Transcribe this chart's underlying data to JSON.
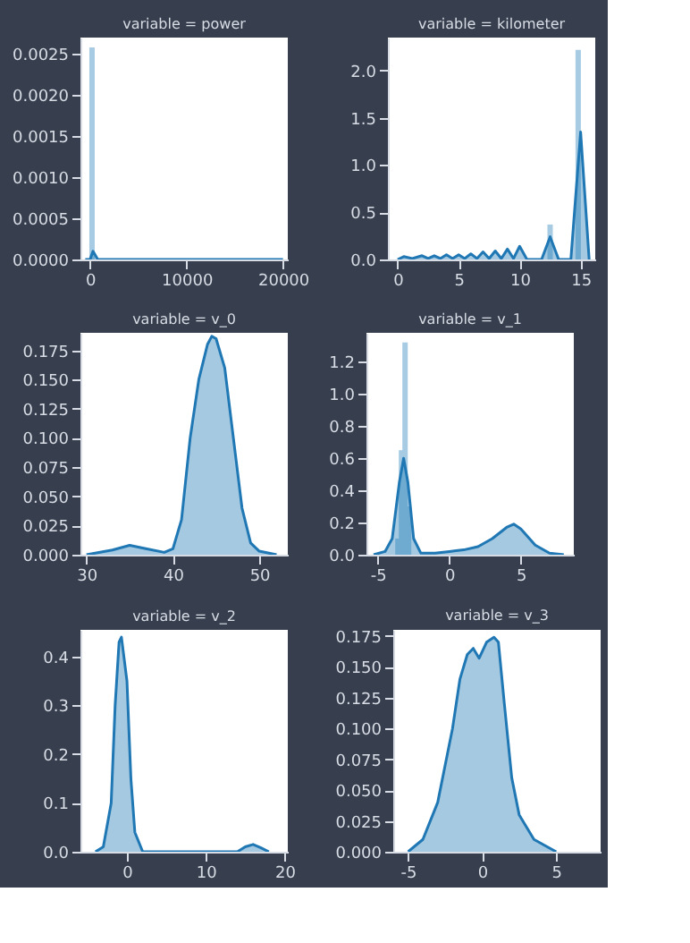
{
  "chart_data": [
    {
      "type": "area",
      "title": "variable = power",
      "xlim": [
        -1000,
        20500
      ],
      "xticks": [
        0,
        10000,
        20000
      ],
      "ylim": [
        0,
        0.0027
      ],
      "yticks": [
        {
          "value": 0,
          "label": "0.0000"
        },
        {
          "value": 0.0005,
          "label": "0.0005"
        },
        {
          "value": 0.001,
          "label": "0.0010"
        },
        {
          "value": 0.0015,
          "label": "0.0015"
        },
        {
          "value": 0.002,
          "label": "0.0020"
        },
        {
          "value": 0.0025,
          "label": "0.0025"
        }
      ],
      "series": [
        {
          "type": "bar",
          "color": "#a6cbe3",
          "x": [
            200
          ],
          "values": [
            0.00258
          ]
        },
        {
          "color": "#1f77b4",
          "x": [
            -500,
            0,
            300,
            800,
            2000,
            19500,
            20000
          ],
          "values": [
            0,
            0,
            0.0001,
            0,
            0,
            0,
            0
          ]
        }
      ]
    },
    {
      "type": "area",
      "title": "variable = kilometer",
      "xlim": [
        -0.8,
        16.2
      ],
      "xticks": [
        0,
        5,
        10,
        15
      ],
      "ylim": [
        0,
        2.35
      ],
      "yticks": [
        {
          "value": 0,
          "label": "0.0"
        },
        {
          "value": 0.5,
          "label": "0.5"
        },
        {
          "value": 1,
          "label": "1.0"
        },
        {
          "value": 1.5,
          "label": "1.5"
        },
        {
          "value": 2,
          "label": "2.0"
        }
      ],
      "series": [
        {
          "type": "bar",
          "color": "#a6cbe3",
          "x": [
            12.5,
            14.8
          ],
          "values": [
            0.37,
            2.22
          ]
        },
        {
          "color": "#1f77b4",
          "x": [
            0,
            0.5,
            1.2,
            2,
            2.5,
            3,
            3.5,
            4,
            4.5,
            5,
            5.5,
            6,
            6.5,
            7,
            7.5,
            8,
            8.5,
            9,
            9.5,
            10,
            10.6,
            11.8,
            12.5,
            13.2,
            14.2,
            15,
            15.7
          ],
          "values": [
            0,
            0.03,
            0.01,
            0.04,
            0.01,
            0.04,
            0.01,
            0.05,
            0.01,
            0.05,
            0.01,
            0.06,
            0.01,
            0.08,
            0.01,
            0.09,
            0.01,
            0.11,
            0.01,
            0.14,
            0,
            0,
            0.24,
            0,
            0,
            1.35,
            0
          ]
        }
      ]
    },
    {
      "type": "area",
      "title": "variable = v_0",
      "xlim": [
        29.3,
        53.3
      ],
      "xticks": [
        30,
        40,
        50
      ],
      "ylim": [
        0,
        0.19
      ],
      "yticks": [
        {
          "value": 0,
          "label": "0.000"
        },
        {
          "value": 0.025,
          "label": "0.025"
        },
        {
          "value": 0.05,
          "label": "0.050"
        },
        {
          "value": 0.075,
          "label": "0.075"
        },
        {
          "value": 0.1,
          "label": "0.100"
        },
        {
          "value": 0.125,
          "label": "0.125"
        },
        {
          "value": 0.15,
          "label": "0.150"
        },
        {
          "value": 0.175,
          "label": "0.175"
        }
      ],
      "series": [
        {
          "color": "#1f77b4",
          "x": [
            30,
            33,
            35,
            37,
            39,
            40,
            41,
            42,
            43,
            44,
            44.5,
            45,
            46,
            47,
            48,
            49,
            50,
            52
          ],
          "values": [
            0,
            0.004,
            0.008,
            0.005,
            0.002,
            0.005,
            0.03,
            0.1,
            0.15,
            0.18,
            0.187,
            0.185,
            0.16,
            0.1,
            0.04,
            0.01,
            0.003,
            0
          ]
        }
      ]
    },
    {
      "type": "area",
      "title": "variable = v_1",
      "xlim": [
        -5.8,
        8.7
      ],
      "xticks": [
        -5,
        0,
        5
      ],
      "ylim": [
        0,
        1.38
      ],
      "yticks": [
        {
          "value": 0,
          "label": "0.0"
        },
        {
          "value": 0.2,
          "label": "0.2"
        },
        {
          "value": 0.4,
          "label": "0.4"
        },
        {
          "value": 0.6,
          "label": "0.6"
        },
        {
          "value": 0.8,
          "label": "0.8"
        },
        {
          "value": 1,
          "label": "1.0"
        },
        {
          "value": 1.2,
          "label": "1.2"
        }
      ],
      "series": [
        {
          "type": "bar",
          "color": "#a6cbe3",
          "x": [
            -3.6,
            -3.35,
            -3.1,
            -2.85
          ],
          "values": [
            0.1,
            0.65,
            1.32,
            0.3
          ]
        },
        {
          "color": "#1f77b4",
          "x": [
            -5.3,
            -4.5,
            -4,
            -3.5,
            -3.2,
            -2.9,
            -2.5,
            -2,
            -1,
            0,
            1,
            2,
            3,
            4,
            4.5,
            5,
            6,
            7,
            8
          ],
          "values": [
            0,
            0.02,
            0.1,
            0.45,
            0.6,
            0.45,
            0.1,
            0.01,
            0.01,
            0.02,
            0.03,
            0.05,
            0.1,
            0.17,
            0.19,
            0.16,
            0.06,
            0.01,
            0
          ]
        }
      ]
    },
    {
      "type": "area",
      "title": "variable = v_2",
      "xlim": [
        -5.9,
        20.4
      ],
      "xticks": [
        0,
        10,
        20
      ],
      "ylim": [
        0,
        0.455
      ],
      "yticks": [
        {
          "value": 0,
          "label": "0.0"
        },
        {
          "value": 0.1,
          "label": "0.1"
        },
        {
          "value": 0.2,
          "label": "0.2"
        },
        {
          "value": 0.3,
          "label": "0.3"
        },
        {
          "value": 0.4,
          "label": "0.4"
        }
      ],
      "series": [
        {
          "color": "#1f77b4",
          "x": [
            -4,
            -3,
            -2,
            -1.5,
            -1,
            -0.7,
            0,
            0.5,
            1,
            2,
            14,
            15,
            16,
            17,
            18
          ],
          "values": [
            0,
            0.01,
            0.1,
            0.3,
            0.43,
            0.44,
            0.35,
            0.15,
            0.04,
            0,
            0,
            0.01,
            0.015,
            0.008,
            0
          ]
        }
      ]
    },
    {
      "type": "area",
      "title": "variable = v_3",
      "xlim": [
        -6,
        8
      ],
      "xticks": [
        -5,
        0,
        5
      ],
      "ylim": [
        0,
        0.18
      ],
      "yticks": [
        {
          "value": 0,
          "label": "0.000"
        },
        {
          "value": 0.025,
          "label": "0.025"
        },
        {
          "value": 0.05,
          "label": "0.050"
        },
        {
          "value": 0.075,
          "label": "0.075"
        },
        {
          "value": 0.1,
          "label": "0.100"
        },
        {
          "value": 0.125,
          "label": "0.125"
        },
        {
          "value": 0.15,
          "label": "0.150"
        },
        {
          "value": 0.175,
          "label": "0.175"
        }
      ],
      "series": [
        {
          "color": "#1f77b4",
          "x": [
            -5,
            -4,
            -3,
            -2,
            -1.5,
            -1,
            -0.6,
            -0.2,
            0.3,
            0.8,
            1.1,
            1.5,
            2,
            2.5,
            3.5,
            5
          ],
          "values": [
            0,
            0.01,
            0.04,
            0.1,
            0.14,
            0.16,
            0.165,
            0.157,
            0.17,
            0.174,
            0.17,
            0.12,
            0.06,
            0.03,
            0.01,
            0
          ]
        }
      ]
    }
  ]
}
